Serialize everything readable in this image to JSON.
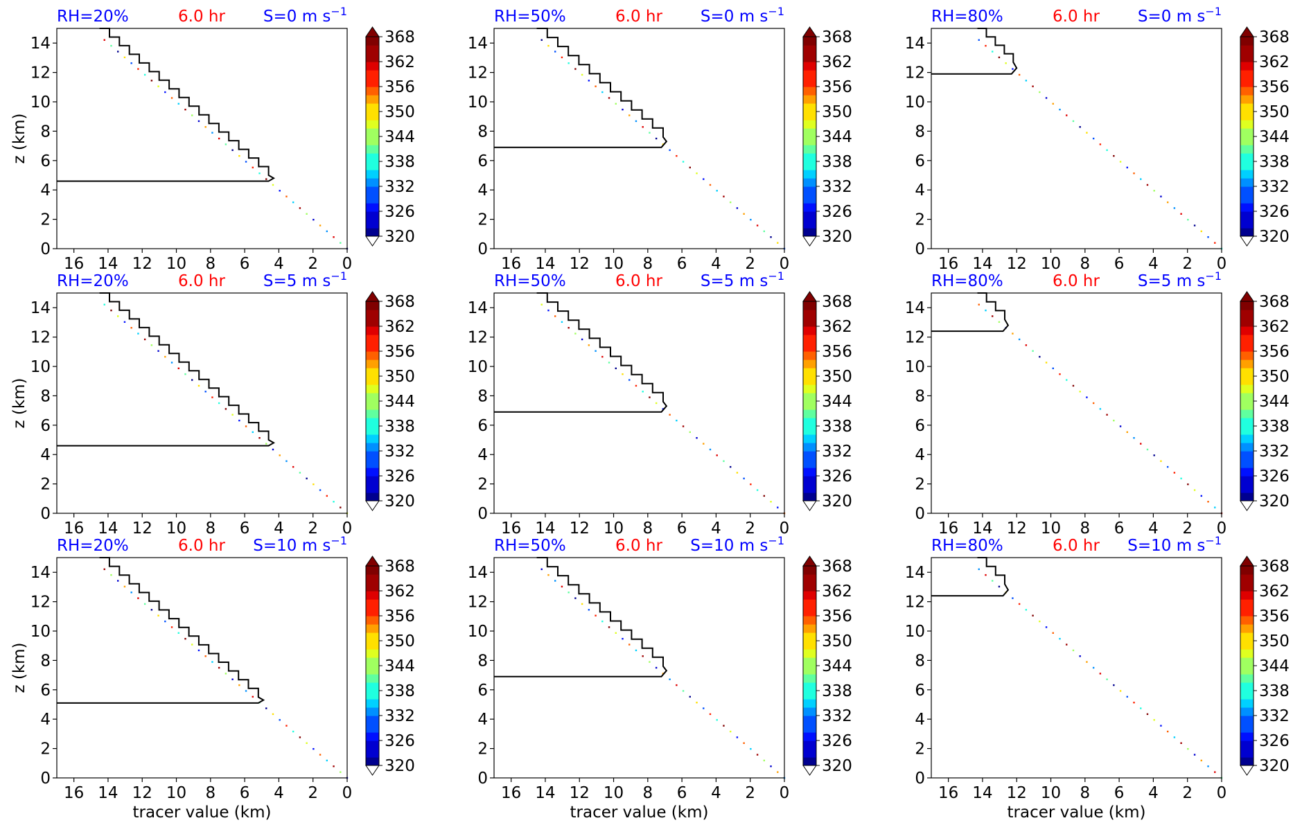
{
  "figure": {
    "ylabel": "z (km)",
    "xlabel": "tracer value (km)"
  },
  "colorbar": {
    "ticks": [
      "320",
      "326",
      "332",
      "338",
      "344",
      "350",
      "356",
      "362",
      "368"
    ],
    "vmin": 320,
    "vmax": 368,
    "levels": 24,
    "extend": "both",
    "colormap": [
      "#00008f",
      "#0000d0",
      "#0010ff",
      "#0050ff",
      "#0090ff",
      "#00d0ff",
      "#20ffdf",
      "#60ff9f",
      "#a0ff60",
      "#dfff20",
      "#ffe000",
      "#ffa000",
      "#ff6000",
      "#ff2000",
      "#df0000",
      "#9f0000",
      "#800000"
    ]
  },
  "colors": {
    "rh_label": "#0000ff",
    "time_label": "#ff0000",
    "shear_label": "#0000ff",
    "contour": "#000000"
  },
  "chart_data": [
    {
      "type": "line",
      "row": 0,
      "col": 0,
      "rh": "RH=20%",
      "time": "6.0 hr",
      "shear": "S=0 m s",
      "shear_sup": "−1",
      "xlim": [
        17,
        0
      ],
      "ylim": [
        0,
        15
      ],
      "xticks": [
        "16",
        "14",
        "12",
        "10",
        "8",
        "6",
        "4",
        "2",
        "0"
      ],
      "yticks": [
        "0",
        "2",
        "4",
        "6",
        "8",
        "10",
        "12",
        "14"
      ],
      "diagonal": {
        "from": [
          0,
          0
        ],
        "to": [
          15,
          15
        ]
      },
      "contour": {
        "x": [
          14.5,
          4.6,
          4.3,
          4.6,
          17
        ],
        "y": [
          15,
          5.0,
          4.8,
          4.6,
          4.6
        ]
      }
    },
    {
      "type": "line",
      "row": 0,
      "col": 1,
      "rh": "RH=50%",
      "time": "6.0 hr",
      "shear": "S=0 m s",
      "shear_sup": "−1",
      "xlim": [
        17,
        0
      ],
      "ylim": [
        0,
        15
      ],
      "xticks": [
        "16",
        "14",
        "12",
        "10",
        "8",
        "6",
        "4",
        "2",
        "0"
      ],
      "yticks": [
        "0",
        "2",
        "4",
        "6",
        "8",
        "10",
        "12",
        "14"
      ],
      "diagonal": {
        "from": [
          0,
          0
        ],
        "to": [
          15,
          15
        ]
      },
      "contour": {
        "x": [
          14.5,
          7.1,
          6.9,
          7.2,
          17
        ],
        "y": [
          15,
          7.6,
          7.3,
          6.9,
          6.9
        ]
      }
    },
    {
      "type": "line",
      "row": 0,
      "col": 2,
      "rh": "RH=80%",
      "time": "6.0 hr",
      "shear": "S=0 m s",
      "shear_sup": "−1",
      "xlim": [
        17,
        0
      ],
      "ylim": [
        0,
        15
      ],
      "xticks": [
        "16",
        "14",
        "12",
        "10",
        "8",
        "6",
        "4",
        "2",
        "0"
      ],
      "yticks": [
        "0",
        "2",
        "4",
        "6",
        "8",
        "10",
        "12",
        "14"
      ],
      "diagonal": {
        "from": [
          0,
          0
        ],
        "to": [
          15,
          15
        ]
      },
      "contour": {
        "x": [
          14.3,
          12.2,
          12.0,
          12.3,
          17
        ],
        "y": [
          15,
          12.7,
          12.3,
          11.9,
          11.9
        ]
      }
    },
    {
      "type": "line",
      "row": 1,
      "col": 0,
      "rh": "RH=20%",
      "time": "6.0 hr",
      "shear": "S=5 m s",
      "shear_sup": "−1",
      "xlim": [
        17,
        0
      ],
      "ylim": [
        0,
        15
      ],
      "xticks": [
        "16",
        "14",
        "12",
        "10",
        "8",
        "6",
        "4",
        "2",
        "0"
      ],
      "yticks": [
        "0",
        "2",
        "4",
        "6",
        "8",
        "10",
        "12",
        "14"
      ],
      "diagonal": {
        "from": [
          0,
          0
        ],
        "to": [
          15,
          15
        ]
      },
      "contour": {
        "x": [
          14.5,
          4.6,
          4.3,
          4.6,
          17
        ],
        "y": [
          15,
          5.0,
          4.8,
          4.6,
          4.6
        ]
      }
    },
    {
      "type": "line",
      "row": 1,
      "col": 1,
      "rh": "RH=50%",
      "time": "6.0 hr",
      "shear": "S=5 m s",
      "shear_sup": "−1",
      "xlim": [
        17,
        0
      ],
      "ylim": [
        0,
        15
      ],
      "xticks": [
        "16",
        "14",
        "12",
        "10",
        "8",
        "6",
        "4",
        "2",
        "0"
      ],
      "yticks": [
        "0",
        "2",
        "4",
        "6",
        "8",
        "10",
        "12",
        "14"
      ],
      "diagonal": {
        "from": [
          0,
          0
        ],
        "to": [
          15,
          15
        ]
      },
      "contour": {
        "x": [
          14.5,
          7.1,
          6.9,
          7.2,
          17
        ],
        "y": [
          15,
          7.6,
          7.3,
          6.9,
          6.9
        ]
      }
    },
    {
      "type": "line",
      "row": 1,
      "col": 2,
      "rh": "RH=80%",
      "time": "6.0 hr",
      "shear": "S=5 m s",
      "shear_sup": "−1",
      "xlim": [
        17,
        0
      ],
      "ylim": [
        0,
        15
      ],
      "xticks": [
        "16",
        "14",
        "12",
        "10",
        "8",
        "6",
        "4",
        "2",
        "0"
      ],
      "yticks": [
        "0",
        "2",
        "4",
        "6",
        "8",
        "10",
        "12",
        "14"
      ],
      "diagonal": {
        "from": [
          0,
          0
        ],
        "to": [
          15,
          15
        ]
      },
      "contour": {
        "x": [
          14.3,
          12.7,
          12.5,
          12.8,
          17
        ],
        "y": [
          15,
          13.2,
          12.8,
          12.4,
          12.4
        ]
      }
    },
    {
      "type": "line",
      "row": 2,
      "col": 0,
      "rh": "RH=20%",
      "time": "6.0 hr",
      "shear": "S=10 m s",
      "shear_sup": "−1",
      "xlim": [
        17,
        0
      ],
      "ylim": [
        0,
        15
      ],
      "xticks": [
        "16",
        "14",
        "12",
        "10",
        "8",
        "6",
        "4",
        "2",
        "0"
      ],
      "yticks": [
        "0",
        "2",
        "4",
        "6",
        "8",
        "10",
        "12",
        "14"
      ],
      "diagonal": {
        "from": [
          0,
          0
        ],
        "to": [
          15,
          15
        ]
      },
      "contour": {
        "x": [
          14.5,
          5.2,
          4.9,
          5.2,
          17
        ],
        "y": [
          15,
          5.5,
          5.3,
          5.1,
          5.1
        ]
      }
    },
    {
      "type": "line",
      "row": 2,
      "col": 1,
      "rh": "RH=50%",
      "time": "6.0 hr",
      "shear": "S=10 m s",
      "shear_sup": "−1",
      "xlim": [
        17,
        0
      ],
      "ylim": [
        0,
        15
      ],
      "xticks": [
        "16",
        "14",
        "12",
        "10",
        "8",
        "6",
        "4",
        "2",
        "0"
      ],
      "yticks": [
        "0",
        "2",
        "4",
        "6",
        "8",
        "10",
        "12",
        "14"
      ],
      "diagonal": {
        "from": [
          0,
          0
        ],
        "to": [
          15,
          15
        ]
      },
      "contour": {
        "x": [
          14.5,
          7.1,
          6.9,
          7.2,
          17
        ],
        "y": [
          15,
          7.6,
          7.3,
          6.9,
          6.9
        ]
      }
    },
    {
      "type": "line",
      "row": 2,
      "col": 2,
      "rh": "RH=80%",
      "time": "6.0 hr",
      "shear": "S=10 m s",
      "shear_sup": "−1",
      "xlim": [
        17,
        0
      ],
      "ylim": [
        0,
        15
      ],
      "xticks": [
        "16",
        "14",
        "12",
        "10",
        "8",
        "6",
        "4",
        "2",
        "0"
      ],
      "yticks": [
        "0",
        "2",
        "4",
        "6",
        "8",
        "10",
        "12",
        "14"
      ],
      "diagonal": {
        "from": [
          0,
          0
        ],
        "to": [
          15,
          15
        ]
      },
      "contour": {
        "x": [
          14.3,
          12.7,
          12.5,
          12.8,
          17
        ],
        "y": [
          15,
          13.2,
          12.8,
          12.4,
          12.4
        ]
      }
    }
  ]
}
